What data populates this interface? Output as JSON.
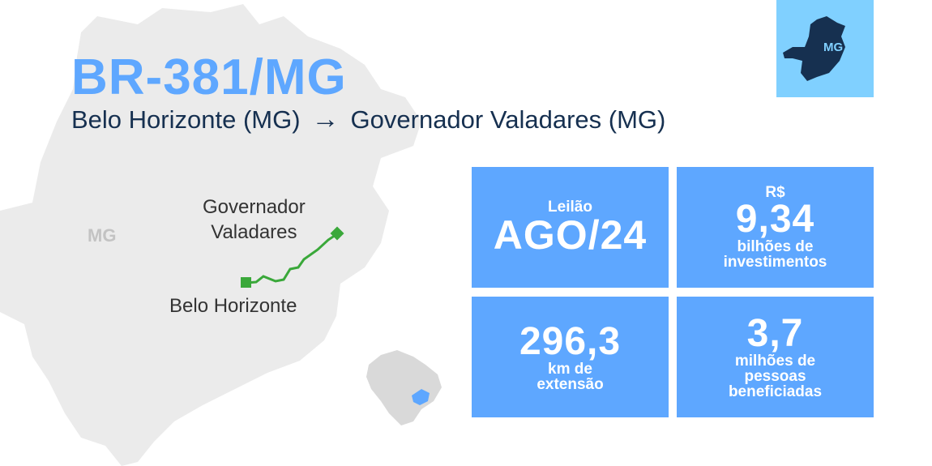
{
  "header": {
    "title": "BR-381/MG",
    "origin": "Belo Horizonte (MG)",
    "arrow": "→",
    "destination": "Governador Valadares (MG)"
  },
  "badge": {
    "label": "MG"
  },
  "map": {
    "state_label": "MG",
    "city_end": "Governador Valadares",
    "city_end_line1": "Governador",
    "city_end_line2": "Valadares",
    "city_start": "Belo Horizonte",
    "route_color": "#3aa83a"
  },
  "cards": [
    {
      "top": "Leilão",
      "value": "AGO/24",
      "bottom": []
    },
    {
      "top": "R$",
      "value": "9,34",
      "bottom": [
        "bilhões de",
        "investimentos"
      ]
    },
    {
      "top": "",
      "value": "296,3",
      "bottom": [
        "km de",
        "extensão"
      ]
    },
    {
      "top": "",
      "value": "3,7",
      "bottom": [
        "milhões de",
        "pessoas",
        "beneficiadas"
      ]
    }
  ],
  "colors": {
    "accent": "#5ea7ff",
    "dark": "#163050",
    "light_blue": "#80d0ff",
    "map_gray": "#ebebeb"
  }
}
